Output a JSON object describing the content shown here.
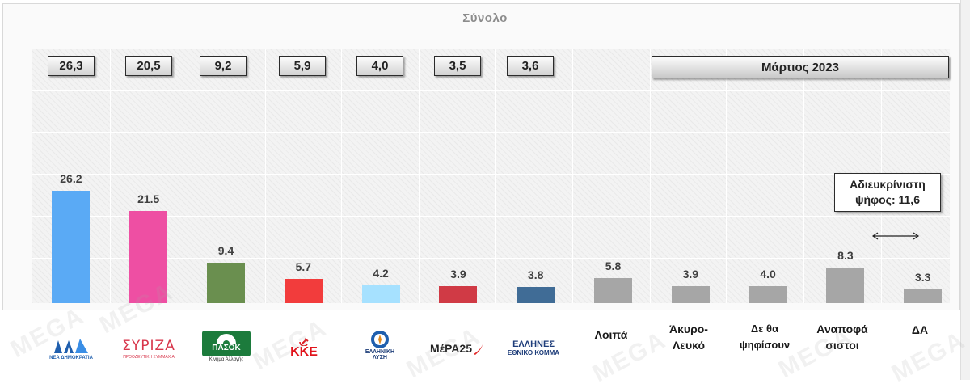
{
  "title": "Σύνολο",
  "period_label": "Μάρτιος 2023",
  "annotation": {
    "line1": "Αδιευκρίνιστη",
    "line2": "ψήφος: 11,6"
  },
  "logos": {
    "nd": {
      "mark": "ΝΔ",
      "caption": "ΝΕΑ ΔΗΜΟΚΡΑΤΙΑ"
    },
    "syriza": {
      "mark": "ΣΥΡΙΖΑ",
      "caption": "ΠΡΟΟΔΕΥΤΙΚΗ ΣΥΜΜΑΧΙΑ"
    },
    "pasok": {
      "mark": "ΠΑΣΟΚ",
      "caption": "Κίνημα Αλλαγής"
    },
    "kke": {
      "mark": "ΚΚΕ"
    },
    "elliniki_lysi": {
      "caption1": "ΕΛΛΗΝΙΚΗ",
      "caption2": "ΛΥΣΗ"
    },
    "mera25": {
      "mark": "ΜέΡΑ25"
    },
    "ellines": {
      "mark1": "ΕΛΛΗΝΕΣ",
      "mark2": "ΕΘΝΙΚΟ ΚΟΜΜΑ"
    }
  },
  "watermark": "MEGA",
  "chart_data": {
    "type": "bar",
    "title": "Σύνολο",
    "ylim": [
      0,
      60
    ],
    "grid": true,
    "categories": [
      "ΝΔ",
      "ΣΥΡΙΖΑ",
      "ΠΑΣΟΚ",
      "ΚΚΕ",
      "ΕΛΛΗΝΙΚΗ ΛΥΣΗ",
      "ΜέΡΑ25",
      "ΕΛΛΗΝΕΣ",
      "Λοιπά",
      "Άκυρο-Λευκό",
      "Δε θα ψηφίσουν",
      "Αναποφάσιστοι",
      "ΔΑ"
    ],
    "values": [
      26.2,
      21.5,
      9.4,
      5.7,
      4.2,
      3.9,
      3.8,
      5.8,
      3.9,
      4.0,
      8.3,
      3.3
    ],
    "value_labels": [
      "26.2",
      "21.5",
      "9.4",
      "5.7",
      "4.2",
      "3.9",
      "3.8",
      "5.8",
      "3.9",
      "4.0",
      "8.3",
      "3.3"
    ],
    "colors": [
      "#5aaaf5",
      "#ee4fa3",
      "#6a8f4f",
      "#f23c3c",
      "#a6e1ff",
      "#d03a45",
      "#406c96",
      "#a6a6a6",
      "#a6a6a6",
      "#a6a6a6",
      "#a6a6a6",
      "#a6a6a6"
    ],
    "previous_values": [
      "26,3",
      "20,5",
      "9,2",
      "5,9",
      "4,0",
      "3,5",
      "3,6"
    ],
    "text_labels": {
      "loipa": "Λοιπά",
      "akyro": "Άκυρο-",
      "akyro2": "Λευκό",
      "de_tha": "Δε θα",
      "de_tha2": "ψηφίσουν",
      "anapof": "Αναποφά",
      "anapof2": "σιστοι",
      "da": "ΔΑ"
    }
  }
}
